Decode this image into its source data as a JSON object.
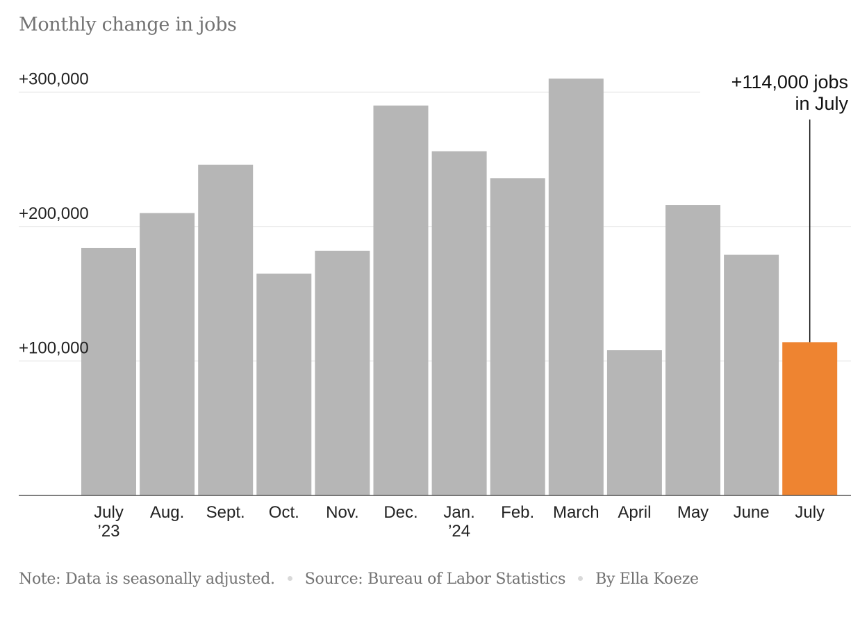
{
  "title": "Monthly change in jobs",
  "chart_data": {
    "type": "bar",
    "categories": [
      "July\n’23",
      "Aug.",
      "Sept.",
      "Oct.",
      "Nov.",
      "Dec.",
      "Jan.\n’24",
      "Feb.",
      "March",
      "April",
      "May",
      "June",
      "July"
    ],
    "values": [
      184000,
      210000,
      246000,
      165000,
      182000,
      290000,
      256000,
      236000,
      310000,
      108000,
      216000,
      179000,
      114000
    ],
    "ylim": [
      0,
      300000
    ],
    "yticks": [
      100000,
      200000,
      300000
    ],
    "ytick_labels": [
      "+100,000",
      "+200,000",
      "+300,000"
    ],
    "bar_color": "#b6b6b6",
    "highlight_color": "#ee8431",
    "highlight_index": 12,
    "grid": true,
    "annotation": {
      "target_index": 12,
      "lines": [
        "+114,000 jobs",
        "in July"
      ]
    }
  },
  "footer": {
    "note": "Note: Data is seasonally adjusted.",
    "source": "Source: Bureau of Labor Statistics",
    "byline": "By Ella Koeze"
  }
}
